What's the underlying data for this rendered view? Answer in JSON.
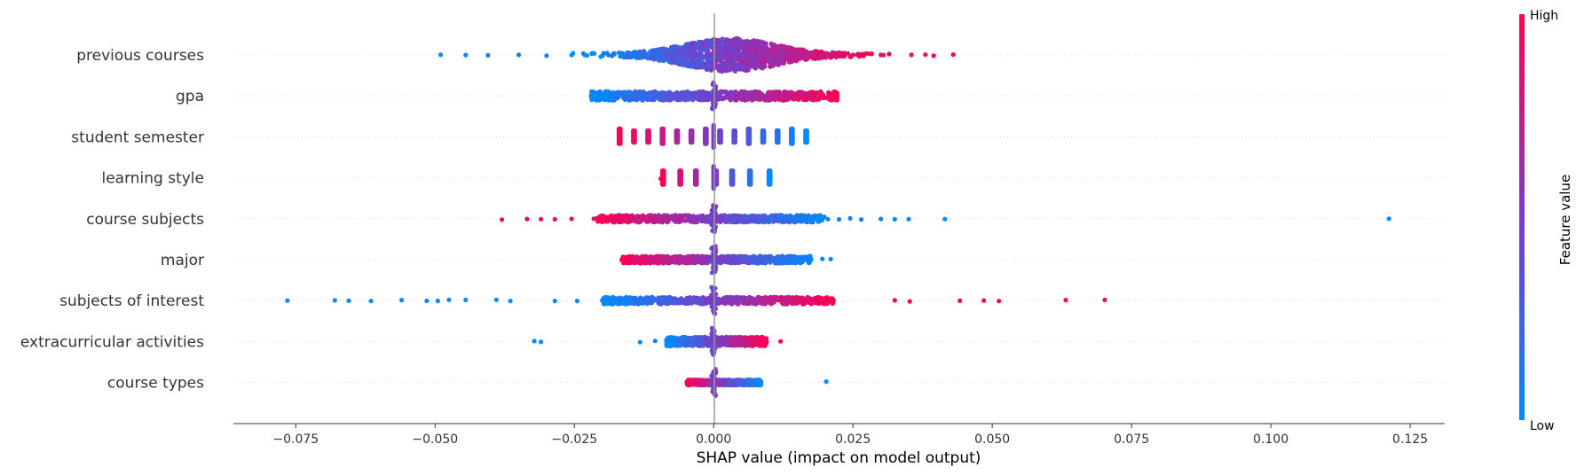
{
  "chart_data": {
    "type": "scatter",
    "subtype": "shap-beeswarm",
    "xlabel": "SHAP value (impact on model output)",
    "xlim": [
      -0.0862,
      0.1312
    ],
    "xticks": [
      -0.075,
      -0.05,
      -0.025,
      0.0,
      0.025,
      0.05,
      0.075,
      0.1,
      0.125
    ],
    "xtick_labels": [
      "−0.075",
      "−0.050",
      "−0.025",
      "0.000",
      "0.025",
      "0.050",
      "0.075",
      "0.100",
      "0.125"
    ],
    "zero_line": 0.0,
    "grid": false,
    "colorbar": {
      "title": "Feature value",
      "high_label": "High",
      "low_label": "Low",
      "low_color": "#008bfb",
      "mid_color": "#7c3bc6",
      "high_color": "#ff0051"
    },
    "features": [
      "previous courses",
      "gpa",
      "student semester",
      "learning style",
      "course subjects",
      "major",
      "subjects of interest",
      "extracurricular activities",
      "course types"
    ],
    "series": [
      {
        "feature": "previous courses",
        "min": -0.049,
        "max": 0.043,
        "points": [
          [
            -0.049,
            0.0
          ],
          [
            -0.0445,
            0.0
          ],
          [
            -0.0405,
            0.05
          ],
          [
            -0.035,
            0.08
          ],
          [
            -0.03,
            0.12
          ],
          [
            0.03,
            0.88
          ],
          [
            0.0355,
            0.9
          ],
          [
            0.038,
            0.93
          ],
          [
            0.0395,
            0.95
          ],
          [
            0.043,
            1.0
          ]
        ]
      },
      {
        "feature": "gpa",
        "min": -0.022,
        "max": 0.0222,
        "points": [
          [
            -0.022,
            0.0
          ],
          [
            0.0222,
            1.0
          ]
        ]
      },
      {
        "feature": "student semester",
        "min": -0.017,
        "max": 0.0165,
        "points": [
          [
            -0.017,
            1.0
          ],
          [
            0.0165,
            0.0
          ]
        ]
      },
      {
        "feature": "learning style",
        "min": -0.0095,
        "max": 0.0102,
        "points": [
          [
            -0.0095,
            1.0
          ],
          [
            0.0102,
            0.0
          ]
        ]
      },
      {
        "feature": "course subjects",
        "min": -0.038,
        "max": 0.1212,
        "points": [
          [
            -0.038,
            1.0
          ],
          [
            -0.0335,
            0.95
          ],
          [
            -0.031,
            0.92
          ],
          [
            -0.0285,
            0.9
          ],
          [
            -0.0255,
            0.88
          ],
          [
            -0.0215,
            0.85
          ],
          [
            0.0205,
            0.1
          ],
          [
            0.0225,
            0.08
          ],
          [
            0.0245,
            0.06
          ],
          [
            0.0265,
            0.05
          ],
          [
            0.03,
            0.04
          ],
          [
            0.0325,
            0.02
          ],
          [
            0.035,
            0.01
          ],
          [
            0.0415,
            0.0
          ],
          [
            0.1212,
            0.0
          ]
        ]
      },
      {
        "feature": "major",
        "min": -0.0165,
        "max": 0.021,
        "points": [
          [
            -0.0165,
            1.0
          ],
          [
            0.0175,
            0.05
          ],
          [
            0.0195,
            0.02
          ],
          [
            0.021,
            0.0
          ]
        ]
      },
      {
        "feature": "subjects of interest",
        "min": -0.0765,
        "max": 0.0702,
        "points": [
          [
            -0.0765,
            0.0
          ],
          [
            -0.068,
            0.0
          ],
          [
            -0.0655,
            0.0
          ],
          [
            -0.0615,
            0.0
          ],
          [
            -0.056,
            0.0
          ],
          [
            -0.0515,
            0.0
          ],
          [
            -0.0495,
            0.0
          ],
          [
            -0.0475,
            0.0
          ],
          [
            -0.0445,
            0.0
          ],
          [
            -0.039,
            0.0
          ],
          [
            -0.0365,
            0.0
          ],
          [
            -0.0285,
            0.02
          ],
          [
            -0.0245,
            0.03
          ],
          [
            -0.02,
            0.05
          ],
          [
            0.012,
            0.9
          ],
          [
            0.0165,
            0.92
          ],
          [
            0.0195,
            0.95
          ],
          [
            0.0215,
            0.98
          ],
          [
            0.0325,
            1.0
          ],
          [
            0.0352,
            1.0
          ],
          [
            0.0442,
            1.0
          ],
          [
            0.0485,
            1.0
          ],
          [
            0.0512,
            1.0
          ],
          [
            0.0632,
            1.0
          ],
          [
            0.0702,
            1.0
          ]
        ]
      },
      {
        "feature": "extracurricular activities",
        "min": -0.0322,
        "max": 0.012,
        "points": [
          [
            -0.0322,
            0.0
          ],
          [
            -0.031,
            0.0
          ],
          [
            -0.0132,
            0.0
          ],
          [
            -0.0105,
            0.0
          ],
          [
            0.0095,
            0.95
          ],
          [
            0.012,
            1.0
          ]
        ]
      },
      {
        "feature": "course types",
        "min": -0.0048,
        "max": 0.0202,
        "points": [
          [
            -0.0048,
            1.0
          ],
          [
            0.0085,
            0.0
          ],
          [
            0.0202,
            0.0
          ]
        ]
      }
    ]
  }
}
